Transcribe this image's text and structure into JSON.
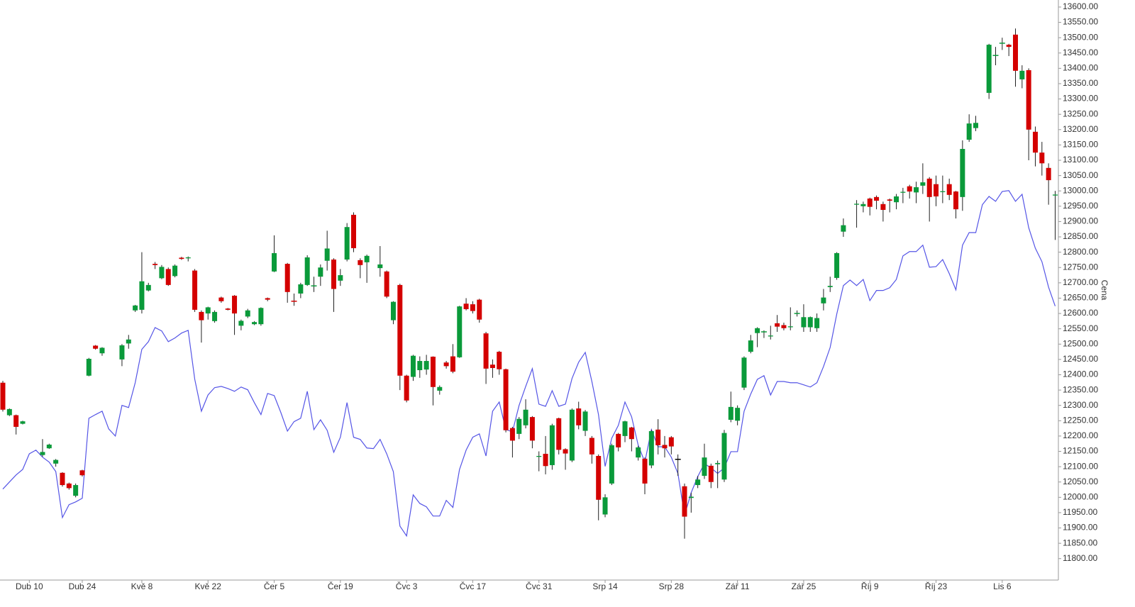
{
  "chart_data": {
    "type": "candlestick",
    "y_label": "Cena",
    "categories": [
      null,
      null,
      null,
      null,
      "Dub 10",
      null,
      null,
      null,
      null,
      null,
      null,
      null,
      "Dub 24",
      null,
      null,
      null,
      null,
      null,
      null,
      null,
      null,
      "Kvě 8",
      null,
      null,
      null,
      null,
      null,
      null,
      null,
      null,
      null,
      "Kvě 22",
      null,
      null,
      null,
      null,
      null,
      null,
      null,
      null,
      null,
      "Čer 5",
      null,
      null,
      null,
      null,
      null,
      null,
      null,
      null,
      null,
      "Čer 19",
      null,
      null,
      null,
      null,
      null,
      null,
      null,
      null,
      null,
      "Čvc 3",
      null,
      null,
      null,
      null,
      null,
      null,
      null,
      null,
      null,
      "Čvc 17",
      null,
      null,
      null,
      null,
      null,
      null,
      null,
      null,
      null,
      "Čvc 31",
      null,
      null,
      null,
      null,
      null,
      null,
      null,
      null,
      null,
      "Srp 14",
      null,
      null,
      null,
      null,
      null,
      null,
      null,
      null,
      null,
      "Srp 28",
      null,
      null,
      null,
      null,
      null,
      null,
      null,
      null,
      null,
      "Zář 11",
      null,
      null,
      null,
      null,
      null,
      null,
      null,
      null,
      null,
      "Zář 25",
      null,
      null,
      null,
      null,
      null,
      null,
      null,
      null,
      null,
      "Říj 9",
      null,
      null,
      null,
      null,
      null,
      null,
      null,
      null,
      null,
      "Říj 23",
      null,
      null,
      null,
      null,
      null,
      null,
      null,
      null,
      null,
      "Lis 6",
      null,
      null,
      null,
      null,
      null,
      null,
      null,
      null
    ],
    "open": [
      12374,
      12268,
      12268,
      12240,
      null,
      null,
      12138,
      12160,
      12110,
      12080,
      12045,
      12005,
      12088,
      12397,
      12495,
      12470,
      null,
      null,
      12450,
      12502,
      12610,
      12612,
      12675,
      12762,
      12715,
      12745,
      12722,
      12782,
      12780,
      12740,
      12605,
      12600,
      12575,
      12652,
      12616,
      12658,
      12560,
      12590,
      12565,
      12565,
      12650,
      12737,
      null,
      12762,
      12642,
      12665,
      12693,
      12688,
      12720,
      12772,
      12776,
      12707,
      12776,
      12922,
      12774,
      12767,
      null,
      12748,
      12737,
      12578,
      12693,
      12397,
      12393,
      12415,
      12417,
      12459,
      12348,
      12440,
      12460,
      12457,
      12632,
      12630,
      12645,
      12535,
      12433,
      12475,
      12418,
      12226,
      12207,
      12235,
      12262,
      12132,
      12142,
      12105,
      12258,
      12157,
      12120,
      12290,
      12217,
      12194,
      12135,
      11944,
      12045,
      12207,
      12200,
      12228,
      12130,
      12126,
      12104,
      12221,
      12171,
      12196,
      12124,
      12036,
      11998,
      12040,
      12070,
      12103,
      12108,
      12058,
      12253,
      12250,
      12358,
      12475,
      12536,
      12538,
      12525,
      12568,
      12562,
      12555,
      12598,
      12555,
      12555,
      12552,
      12633,
      12686,
      12716,
      12867,
      null,
      12955,
      12950,
      12975,
      12980,
      12957,
      12972,
      12963,
      12994,
      13015,
      12995,
      13017,
      13040,
      13022,
      12996,
      13022,
      12998,
      12980,
      13167,
      13205,
      null,
      13320,
      13440,
      13480,
      13477,
      13510,
      13364,
      13394,
      13193,
      13125,
      13075,
      12985
    ],
    "high": [
      12380,
      12290,
      12270,
      12250,
      null,
      null,
      12190,
      12175,
      12125,
      12082,
      12048,
      12045,
      12090,
      12455,
      12497,
      12490,
      null,
      null,
      12500,
      12530,
      12628,
      12800,
      12700,
      12768,
      12758,
      12750,
      12760,
      12785,
      12786,
      12745,
      12610,
      12622,
      12610,
      12655,
      12618,
      12660,
      12580,
      12615,
      12575,
      12620,
      12652,
      12855,
      null,
      12765,
      12665,
      12700,
      12790,
      12720,
      12760,
      12870,
      12780,
      12745,
      12895,
      12930,
      12780,
      12792,
      null,
      12820,
      12740,
      12640,
      12697,
      12400,
      12465,
      12460,
      12465,
      12460,
      12365,
      12445,
      12500,
      12625,
      12650,
      12640,
      12648,
      12540,
      12450,
      12478,
      12420,
      12230,
      12262,
      12320,
      12265,
      12150,
      12200,
      12240,
      12260,
      12160,
      12290,
      12312,
      12285,
      12200,
      12140,
      12010,
      12175,
      12210,
      12250,
      12230,
      12168,
      12130,
      12220,
      12255,
      12200,
      12200,
      12140,
      12045,
      12015,
      12070,
      12175,
      12110,
      12120,
      12220,
      12345,
      12300,
      12460,
      12530,
      12555,
      12545,
      12560,
      12595,
      12570,
      12620,
      12610,
      12630,
      12590,
      12600,
      12680,
      12720,
      12800,
      12910,
      null,
      12970,
      12965,
      12978,
      12985,
      12965,
      12975,
      12990,
      13010,
      13020,
      13030,
      13090,
      13045,
      13050,
      13050,
      13040,
      13000,
      13165,
      13250,
      13245,
      null,
      13480,
      13470,
      13500,
      13480,
      13530,
      13410,
      13400,
      13210,
      13160,
      13090,
      13000
    ],
    "low": [
      12280,
      12265,
      12205,
      12238,
      null,
      null,
      12133,
      12158,
      12100,
      12035,
      12025,
      12000,
      12068,
      12395,
      12482,
      12462,
      null,
      null,
      12428,
      12485,
      12605,
      12600,
      12672,
      12745,
      12712,
      12690,
      12718,
      12775,
      12770,
      12605,
      12505,
      12580,
      12570,
      12635,
      12610,
      12530,
      12545,
      12585,
      12562,
      12560,
      12640,
      12735,
      null,
      12635,
      12625,
      12650,
      12690,
      12670,
      12690,
      12740,
      12605,
      12690,
      12770,
      12800,
      12715,
      12700,
      null,
      12720,
      12650,
      12565,
      12350,
      12310,
      12380,
      12390,
      12400,
      12300,
      12335,
      12420,
      12405,
      12455,
      12610,
      12600,
      12570,
      12370,
      12390,
      12400,
      12212,
      12130,
      12190,
      12225,
      12160,
      12085,
      12075,
      12090,
      12140,
      12090,
      12115,
      12222,
      12200,
      12110,
      11925,
      11935,
      12040,
      12150,
      12180,
      12150,
      12120,
      12010,
      12095,
      12140,
      12130,
      12140,
      12070,
      11865,
      11950,
      12030,
      12060,
      12030,
      12030,
      12050,
      12245,
      12235,
      12350,
      12470,
      12490,
      12520,
      12515,
      12540,
      12545,
      12545,
      12590,
      12540,
      12540,
      12540,
      12610,
      12670,
      12710,
      12850,
      null,
      12880,
      12930,
      12920,
      12940,
      12900,
      12930,
      12940,
      12960,
      12975,
      12960,
      12990,
      12900,
      12950,
      12960,
      12970,
      12910,
      12935,
      13160,
      13195,
      null,
      13300,
      13410,
      13460,
      13440,
      13340,
      13335,
      13100,
      13080,
      13050,
      12955,
      12840
    ],
    "close": [
      12286,
      12288,
      12230,
      12248,
      null,
      null,
      12148,
      12172,
      12122,
      12040,
      12030,
      12040,
      12072,
      12452,
      12485,
      12488,
      null,
      null,
      12496,
      12515,
      12626,
      12705,
      12693,
      12758,
      12752,
      12693,
      12756,
      12778,
      12783,
      12612,
      12578,
      12620,
      12605,
      12640,
      12612,
      12600,
      12576,
      12610,
      12572,
      12618,
      12645,
      12797,
      null,
      12670,
      12640,
      12695,
      12783,
      12690,
      12750,
      12812,
      12680,
      12725,
      12882,
      12813,
      12758,
      12788,
      null,
      12760,
      12655,
      12638,
      12397,
      12316,
      12462,
      12445,
      12445,
      12360,
      12360,
      12428,
      12410,
      12623,
      12614,
      12608,
      12580,
      12420,
      12422,
      12418,
      12219,
      12185,
      12256,
      12286,
      12185,
      12135,
      12102,
      12235,
      12155,
      12143,
      12286,
      12235,
      12280,
      12140,
      11992,
      12000,
      12170,
      12163,
      12248,
      12190,
      12163,
      12045,
      12216,
      12170,
      12160,
      12166,
      12124,
      11937,
      12002,
      12058,
      12130,
      12050,
      12112,
      12210,
      12295,
      12292,
      12456,
      12512,
      12552,
      12540,
      12528,
      12557,
      12552,
      12558,
      12600,
      12588,
      12588,
      12585,
      12652,
      12690,
      12797,
      12888,
      null,
      12958,
      12957,
      12948,
      12968,
      12938,
      12968,
      12982,
      12997,
      12998,
      13012,
      13028,
      12980,
      12982,
      12999,
      12987,
      12940,
      13137,
      13220,
      13222,
      null,
      13477,
      13442,
      13482,
      13470,
      13392,
      13392,
      13200,
      13125,
      13090,
      13035,
      12988
    ],
    "up_color": "#0a9a3a",
    "down_color": "#d40000",
    "doji_color": "#000000",
    "overlay": {
      "type": "line",
      "color": "#5555e6",
      "values": [
        12027,
        12050,
        12073,
        12091,
        12142,
        12154,
        12131,
        12115,
        12084,
        11934,
        11976,
        11985,
        11997,
        12258,
        12270,
        12281,
        12223,
        12200,
        12300,
        12293,
        12374,
        12483,
        12508,
        12554,
        12543,
        12508,
        12520,
        12536,
        12545,
        12385,
        12281,
        12334,
        12358,
        12362,
        12355,
        12346,
        12360,
        12351,
        12309,
        12270,
        12339,
        12332,
        12277,
        12216,
        12247,
        12258,
        12346,
        12221,
        12253,
        12219,
        12147,
        12196,
        12309,
        12196,
        12189,
        12161,
        12159,
        12189,
        12142,
        12084,
        11906,
        11874,
        12008,
        11980,
        11969,
        11939,
        11939,
        11990,
        11967,
        12091,
        12154,
        12196,
        12207,
        12135,
        12281,
        12311,
        12221,
        12214,
        12300,
        12362,
        12420,
        12304,
        12297,
        12348,
        12297,
        12304,
        12388,
        12441,
        12473,
        12378,
        12270,
        12101,
        12193,
        12235,
        12311,
        12263,
        12170,
        12115,
        12221,
        12165,
        12165,
        12131,
        12078,
        11941,
        12015,
        12068,
        12110,
        12096,
        12078,
        12096,
        12149,
        12149,
        12281,
        12337,
        12385,
        12397,
        12334,
        12378,
        12378,
        12374,
        12374,
        12367,
        12360,
        12374,
        12427,
        12489,
        12598,
        12691,
        12709,
        12691,
        12711,
        12642,
        12675,
        12675,
        12684,
        12711,
        12788,
        12802,
        12802,
        12823,
        12751,
        12753,
        12776,
        12730,
        12677,
        12823,
        12864,
        12864,
        12955,
        12982,
        12966,
        12998,
        13001,
        12966,
        12989,
        12880,
        12813,
        12769,
        12686,
        12624
      ]
    },
    "ylim": [
      11730,
      13623
    ],
    "yticks": [
      {
        "value": 11800,
        "label": "11800.00"
      },
      {
        "value": 11850,
        "label": "11850.00"
      },
      {
        "value": 11900,
        "label": "11900.00"
      },
      {
        "value": 11950,
        "label": "11950.00"
      },
      {
        "value": 12000,
        "label": "12000.00"
      },
      {
        "value": 12050,
        "label": "12050.00"
      },
      {
        "value": 12100,
        "label": "12100.00"
      },
      {
        "value": 12150,
        "label": "12150.00"
      },
      {
        "value": 12200,
        "label": "12200.00"
      },
      {
        "value": 12250,
        "label": "12250.00"
      },
      {
        "value": 12300,
        "label": "12300.00"
      },
      {
        "value": 12350,
        "label": "12350.00"
      },
      {
        "value": 12400,
        "label": "12400.00"
      },
      {
        "value": 12450,
        "label": "12450.00"
      },
      {
        "value": 12500,
        "label": "12500.00"
      },
      {
        "value": 12550,
        "label": "12550.00"
      },
      {
        "value": 12600,
        "label": "12600.00"
      },
      {
        "value": 12650,
        "label": "12650.00"
      },
      {
        "value": 12700,
        "label": "12700.00"
      },
      {
        "value": 12750,
        "label": "12750.00"
      },
      {
        "value": 12800,
        "label": "12800.00"
      },
      {
        "value": 12850,
        "label": "12850.00"
      },
      {
        "value": 12900,
        "label": "12900.00"
      },
      {
        "value": 12950,
        "label": "12950.00"
      },
      {
        "value": 13000,
        "label": "13000.00"
      },
      {
        "value": 13050,
        "label": "13050.00"
      },
      {
        "value": 13100,
        "label": "13100.00"
      },
      {
        "value": 13150,
        "label": "13150.00"
      },
      {
        "value": 13200,
        "label": "13200.00"
      },
      {
        "value": 13250,
        "label": "13250.00"
      },
      {
        "value": 13300,
        "label": "13300.00"
      },
      {
        "value": 13350,
        "label": "13350.00"
      },
      {
        "value": 13400,
        "label": "13400.00"
      },
      {
        "value": 13450,
        "label": "13450.00"
      },
      {
        "value": 13500,
        "label": "13500.00"
      },
      {
        "value": 13550,
        "label": "13550.00"
      },
      {
        "value": 13600,
        "label": "13600.00"
      }
    ]
  }
}
